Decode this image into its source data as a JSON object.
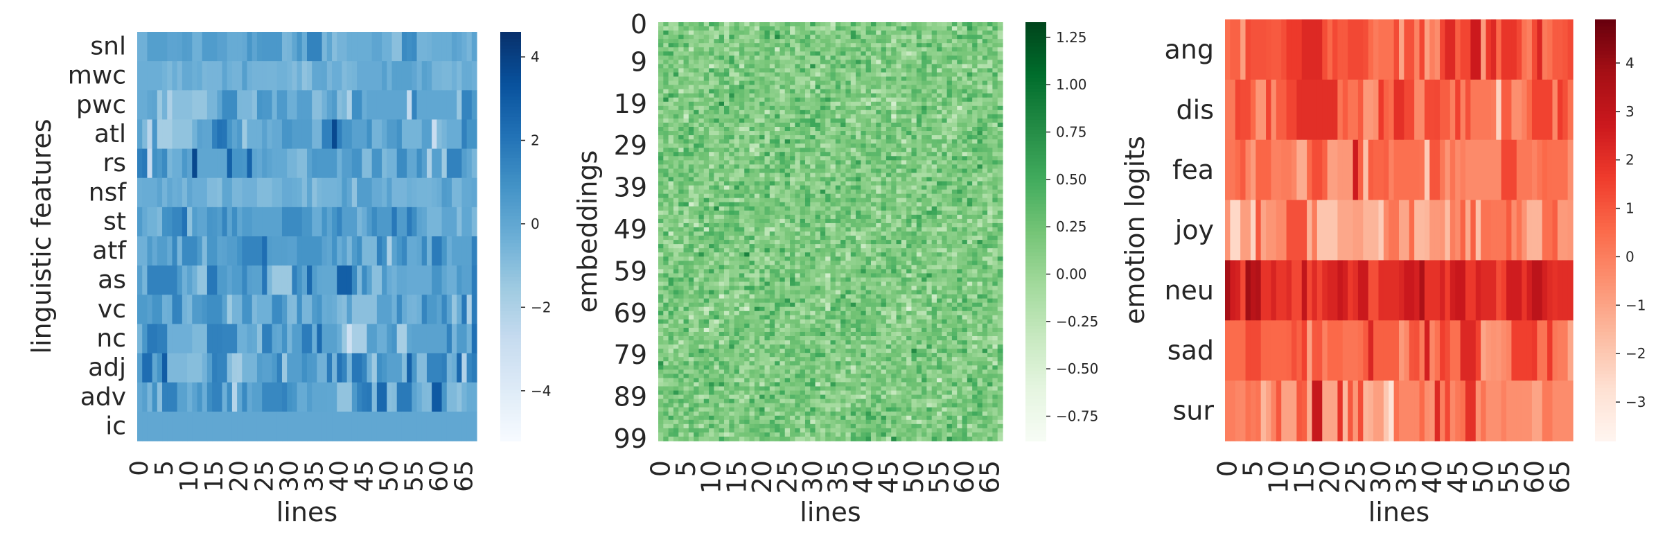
{
  "chart_data": [
    {
      "type": "heatmap",
      "colormap": "Blues",
      "ylabel": "linguistic features",
      "xlabel": "lines",
      "rows": [
        "snl",
        "mwc",
        "pwc",
        "atl",
        "rs",
        "nsf",
        "st",
        "atf",
        "as",
        "vc",
        "nc",
        "adj",
        "adv",
        "ic"
      ],
      "x_tick_labels": [
        "0",
        "5",
        "10",
        "15",
        "20",
        "25",
        "30",
        "35",
        "40",
        "45",
        "50",
        "55",
        "60",
        "65"
      ],
      "x_tick_indices": [
        0,
        5,
        10,
        15,
        20,
        25,
        30,
        35,
        40,
        45,
        50,
        55,
        60,
        65
      ],
      "n_columns": 68,
      "vmin": -5.2,
      "vmax": 4.6,
      "colorbar_ticks": [
        4,
        2,
        0,
        -2,
        -4
      ],
      "colorbar_tick_labels": [
        "4",
        "2",
        "0",
        "−2",
        "−4"
      ],
      "row_profiles": [
        {
          "row": "snl",
          "base": 0.0,
          "spread": 0.6
        },
        {
          "row": "mwc",
          "base": -0.3,
          "spread": 0.35
        },
        {
          "row": "pwc",
          "base": -0.2,
          "spread": 0.9
        },
        {
          "row": "atl",
          "base": 0.2,
          "spread": 1.2
        },
        {
          "row": "rs",
          "base": 0.3,
          "spread": 1.1
        },
        {
          "row": "nsf",
          "base": -0.3,
          "spread": 0.4
        },
        {
          "row": "st",
          "base": 0.5,
          "spread": 0.8
        },
        {
          "row": "atf",
          "base": 0.4,
          "spread": 1.0
        },
        {
          "row": "as",
          "base": 0.3,
          "spread": 1.0
        },
        {
          "row": "vc",
          "base": 0.2,
          "spread": 1.0
        },
        {
          "row": "nc",
          "base": 0.3,
          "spread": 1.2
        },
        {
          "row": "adj",
          "base": 0.3,
          "spread": 1.3
        },
        {
          "row": "adv",
          "base": 0.4,
          "spread": 1.3
        },
        {
          "row": "ic",
          "base": 0.0,
          "spread": 0.0
        }
      ]
    },
    {
      "type": "heatmap",
      "colormap": "Greens",
      "ylabel": "embeddings",
      "xlabel": "lines",
      "y_tick_labels": [
        "0",
        "9",
        "19",
        "29",
        "39",
        "49",
        "59",
        "69",
        "79",
        "89",
        "99"
      ],
      "y_tick_indices": [
        0,
        9,
        19,
        29,
        39,
        49,
        59,
        69,
        79,
        89,
        99
      ],
      "n_rows": 100,
      "x_tick_labels": [
        "0",
        "5",
        "10",
        "15",
        "20",
        "25",
        "30",
        "35",
        "40",
        "45",
        "50",
        "55",
        "60",
        "65"
      ],
      "x_tick_indices": [
        0,
        5,
        10,
        15,
        20,
        25,
        30,
        35,
        40,
        45,
        50,
        55,
        60,
        65
      ],
      "n_columns": 68,
      "vmin": -0.88,
      "vmax": 1.33,
      "colorbar_ticks": [
        1.25,
        1.0,
        0.75,
        0.5,
        0.25,
        0.0,
        -0.25,
        -0.5,
        -0.75
      ],
      "colorbar_tick_labels": [
        "1.25",
        "1.00",
        "0.75",
        "0.50",
        "0.25",
        "0.00",
        "−0.25",
        "−0.50",
        "−0.75"
      ],
      "value_mean": 0.15,
      "value_spread": 0.18
    },
    {
      "type": "heatmap",
      "colormap": "Reds",
      "ylabel": "emotion logits",
      "xlabel": "lines",
      "rows": [
        "ang",
        "dis",
        "fea",
        "joy",
        "neu",
        "sad",
        "sur"
      ],
      "x_tick_labels": [
        "0",
        "5",
        "10",
        "15",
        "20",
        "25",
        "30",
        "35",
        "40",
        "45",
        "50",
        "55",
        "60",
        "65"
      ],
      "x_tick_indices": [
        0,
        5,
        10,
        15,
        20,
        25,
        30,
        35,
        40,
        45,
        50,
        55,
        60,
        65
      ],
      "n_columns": 68,
      "vmin": -3.8,
      "vmax": 4.9,
      "colorbar_ticks": [
        4,
        3,
        2,
        1,
        0,
        -1,
        -2,
        -3
      ],
      "colorbar_tick_labels": [
        "4",
        "3",
        "2",
        "1",
        "0",
        "−1",
        "−2",
        "−3"
      ],
      "row_profiles": [
        {
          "row": "ang",
          "base": 0.9,
          "spread": 0.9
        },
        {
          "row": "dis",
          "base": 0.5,
          "spread": 0.9
        },
        {
          "row": "fea",
          "base": 0.2,
          "spread": 1.0
        },
        {
          "row": "joy",
          "base": -0.6,
          "spread": 1.1
        },
        {
          "row": "neu",
          "base": 2.4,
          "spread": 0.7
        },
        {
          "row": "sad",
          "base": 0.5,
          "spread": 1.0
        },
        {
          "row": "sur",
          "base": 0.0,
          "spread": 1.1
        }
      ]
    }
  ]
}
